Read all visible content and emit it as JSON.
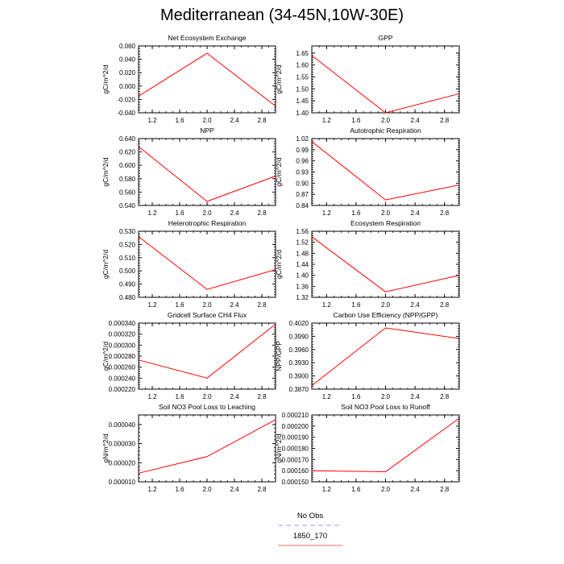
{
  "title": "Mediterranean (34-45N,10W-30E)",
  "line_color": "#ff0000",
  "legend": {
    "items": [
      {
        "label": "No Obs",
        "color": "#9999ff",
        "dash": true
      },
      {
        "label": "1850_170",
        "color": "#ff6666",
        "dash": false
      }
    ]
  },
  "chart_data": [
    {
      "type": "line",
      "title": "Net Ecosystem Exchange",
      "ylabel": "gC/m^2/d",
      "x": [
        1.0,
        2.0,
        3.0
      ],
      "y": [
        -0.015,
        0.049,
        -0.03
      ],
      "xlim": [
        1.0,
        3.0
      ],
      "ylim": [
        -0.04,
        0.06
      ],
      "xticks": [
        "1.2",
        "1.6",
        "2.0",
        "2.4",
        "2.8"
      ],
      "yticks": [
        "-0.040",
        "-0.020",
        "0.000",
        "0.020",
        "0.040",
        "0.060"
      ]
    },
    {
      "type": "line",
      "title": "GPP",
      "ylabel": "gC/m^2/d",
      "x": [
        1.0,
        2.0,
        3.0
      ],
      "y": [
        1.64,
        1.4,
        1.48
      ],
      "xlim": [
        1.0,
        3.0
      ],
      "ylim": [
        1.4,
        1.68
      ],
      "xticks": [
        "1.2",
        "1.6",
        "2.0",
        "2.4",
        "2.8"
      ],
      "yticks": [
        "1.40",
        "1.45",
        "1.50",
        "1.55",
        "1.60",
        "1.65"
      ]
    },
    {
      "type": "line",
      "title": "NPP",
      "ylabel": "gC/m^2/d",
      "x": [
        1.0,
        2.0,
        3.0
      ],
      "y": [
        0.628,
        0.546,
        0.584
      ],
      "xlim": [
        1.0,
        3.0
      ],
      "ylim": [
        0.54,
        0.64
      ],
      "xticks": [
        "1.2",
        "1.6",
        "2.0",
        "2.4",
        "2.8"
      ],
      "yticks": [
        "0.540",
        "0.560",
        "0.580",
        "0.600",
        "0.620",
        "0.640"
      ]
    },
    {
      "type": "line",
      "title": "Autotrophic Respiration",
      "ylabel": "gC/m^2/d",
      "x": [
        1.0,
        2.0,
        3.0
      ],
      "y": [
        1.012,
        0.855,
        0.895
      ],
      "xlim": [
        1.0,
        3.0
      ],
      "ylim": [
        0.84,
        1.02
      ],
      "xticks": [
        "1.2",
        "1.6",
        "2.0",
        "2.4",
        "2.8"
      ],
      "yticks": [
        "0.84",
        "0.87",
        "0.90",
        "0.93",
        "0.96",
        "0.99",
        "1.02"
      ]
    },
    {
      "type": "line",
      "title": "Heterotrophic Respiration",
      "ylabel": "gC/m^2/d",
      "x": [
        1.0,
        2.0,
        3.0
      ],
      "y": [
        0.526,
        0.486,
        0.501
      ],
      "xlim": [
        1.0,
        3.0
      ],
      "ylim": [
        0.48,
        0.53
      ],
      "xticks": [
        "1.2",
        "1.6",
        "2.0",
        "2.4",
        "2.8"
      ],
      "yticks": [
        "0.480",
        "0.490",
        "0.500",
        "0.510",
        "0.520",
        "0.530"
      ]
    },
    {
      "type": "line",
      "title": "Ecosystem Respiration",
      "ylabel": "gC/m^2/d",
      "x": [
        1.0,
        2.0,
        3.0
      ],
      "y": [
        1.54,
        1.34,
        1.4
      ],
      "xlim": [
        1.0,
        3.0
      ],
      "ylim": [
        1.32,
        1.56
      ],
      "xticks": [
        "1.2",
        "1.6",
        "2.0",
        "2.4",
        "2.8"
      ],
      "yticks": [
        "1.32",
        "1.36",
        "1.40",
        "1.44",
        "1.48",
        "1.52",
        "1.56"
      ]
    },
    {
      "type": "line",
      "title": "Gridcell Surface CH4 Flux",
      "ylabel": "gC/m^2/d",
      "x": [
        1.0,
        2.0,
        3.0
      ],
      "y": [
        0.000273,
        0.00024,
        0.000338
      ],
      "xlim": [
        1.0,
        3.0
      ],
      "ylim": [
        0.00022,
        0.00034
      ],
      "xticks": [
        "1.2",
        "1.6",
        "2.0",
        "2.4",
        "2.8"
      ],
      "yticks": [
        "0.000220",
        "0.000240",
        "0.000260",
        "0.000280",
        "0.000300",
        "0.000320",
        "0.000340"
      ]
    },
    {
      "type": "line",
      "title": "Carbon Use Efficiency (NPP/GPP)",
      "ylabel": "NPP/GPP",
      "x": [
        1.0,
        2.0,
        3.0
      ],
      "y": [
        0.3878,
        0.4009,
        0.3985
      ],
      "xlim": [
        1.0,
        3.0
      ],
      "ylim": [
        0.387,
        0.402
      ],
      "xticks": [
        "1.2",
        "1.6",
        "2.0",
        "2.4",
        "2.8"
      ],
      "yticks": [
        "0.3870",
        "0.3900",
        "0.3930",
        "0.3960",
        "0.3990",
        "0.4020"
      ]
    },
    {
      "type": "line",
      "title": "Soil NO3 Pool Loss to Leaching",
      "ylabel": "gN/m^2/d",
      "x": [
        1.0,
        2.0,
        3.0
      ],
      "y": [
        1.45e-05,
        2.32e-05,
        4.25e-05
      ],
      "xlim": [
        1.0,
        3.0
      ],
      "ylim": [
        1e-05,
        4.5e-05
      ],
      "xticks": [
        "1.2",
        "1.6",
        "2.0",
        "2.4",
        "2.8"
      ],
      "yticks": [
        "0.000010",
        "0.000020",
        "0.000030",
        "0.000040"
      ]
    },
    {
      "type": "line",
      "title": "Soil NO3 Pool Loss to Runoff",
      "ylabel": "gN/m^2/d",
      "x": [
        1.0,
        2.0,
        3.0
      ],
      "y": [
        0.00016,
        0.000159,
        0.000207
      ],
      "xlim": [
        1.0,
        3.0
      ],
      "ylim": [
        0.00015,
        0.00021
      ],
      "xticks": [
        "1.2",
        "1.6",
        "2.0",
        "2.4",
        "2.8"
      ],
      "yticks": [
        "0.000150",
        "0.000160",
        "0.000170",
        "0.000180",
        "0.000190",
        "0.000200",
        "0.000210"
      ]
    }
  ]
}
